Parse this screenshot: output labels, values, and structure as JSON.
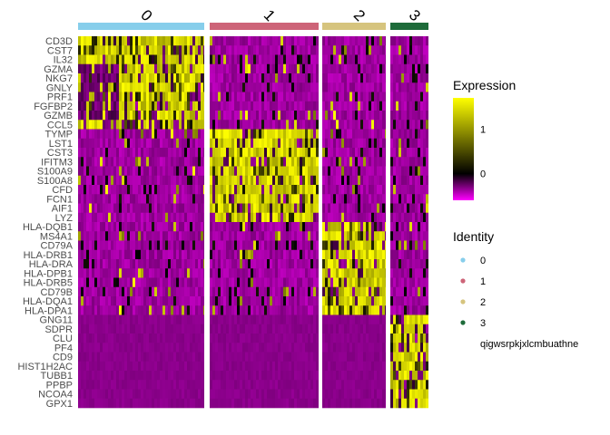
{
  "chart_data": {
    "type": "heatmap",
    "title": "",
    "xlabel": "",
    "ylabel": "",
    "clusters": [
      {
        "name": "0",
        "color": "#87CEEB"
      },
      {
        "name": "1",
        "color": "#CD6478"
      },
      {
        "name": "2",
        "color": "#D6C47E"
      },
      {
        "name": "3",
        "color": "#1E6B3A"
      }
    ],
    "genes": [
      "CD3D",
      "CST7",
      "IL32",
      "GZMA",
      "NKG7",
      "GNLY",
      "PRF1",
      "FGFBP2",
      "GZMB",
      "CCL5",
      "TYMP",
      "LST1",
      "CST3",
      "IFITM3",
      "S100A9",
      "S100A8",
      "CFD",
      "FCN1",
      "AIF1",
      "LYZ",
      "HLA-DQB1",
      "MS4A1",
      "CD79A",
      "HLA-DRB1",
      "HLA-DRA",
      "HLA-DPB1",
      "HLA-DRB5",
      "CD79B",
      "HLA-DQA1",
      "HLA-DPA1",
      "GNG11",
      "SDPR",
      "CLU",
      "PF4",
      "CD9",
      "HIST1H2AC",
      "TUBB1",
      "PPBP",
      "NCOA4",
      "GPX1"
    ],
    "gene_groups": [
      {
        "marker_of": "0",
        "genes": [
          "CD3D",
          "CST7",
          "IL32",
          "GZMA",
          "NKG7",
          "GNLY",
          "PRF1",
          "FGFBP2",
          "GZMB",
          "CCL5"
        ]
      },
      {
        "marker_of": "1",
        "genes": [
          "TYMP",
          "LST1",
          "CST3",
          "IFITM3",
          "S100A9",
          "S100A8",
          "CFD",
          "FCN1",
          "AIF1",
          "LYZ"
        ]
      },
      {
        "marker_of": "2",
        "genes": [
          "HLA-DQB1",
          "MS4A1",
          "CD79A",
          "HLA-DRB1",
          "HLA-DRA",
          "HLA-DPB1",
          "HLA-DRB5",
          "CD79B",
          "HLA-DQA1",
          "HLA-DPA1"
        ]
      },
      {
        "marker_of": "3",
        "genes": [
          "GNG11",
          "SDPR",
          "CLU",
          "PF4",
          "CD9",
          "HIST1H2AC",
          "TUBB1",
          "PPBP",
          "NCOA4",
          "GPX1"
        ]
      }
    ],
    "colorscale": {
      "low": "#FF00FF",
      "mid": "#000000",
      "high": "#FFFF00"
    },
    "expression_range": [
      -0.6,
      1.7
    ],
    "legend": {
      "expression_title": "Expression",
      "expression_ticks": [
        0,
        1
      ],
      "identity_title": "Identity",
      "identity_labels": [
        "0",
        "1",
        "2",
        "3"
      ],
      "extra_label": "qigwsrpkjxlcmbuathne"
    }
  }
}
